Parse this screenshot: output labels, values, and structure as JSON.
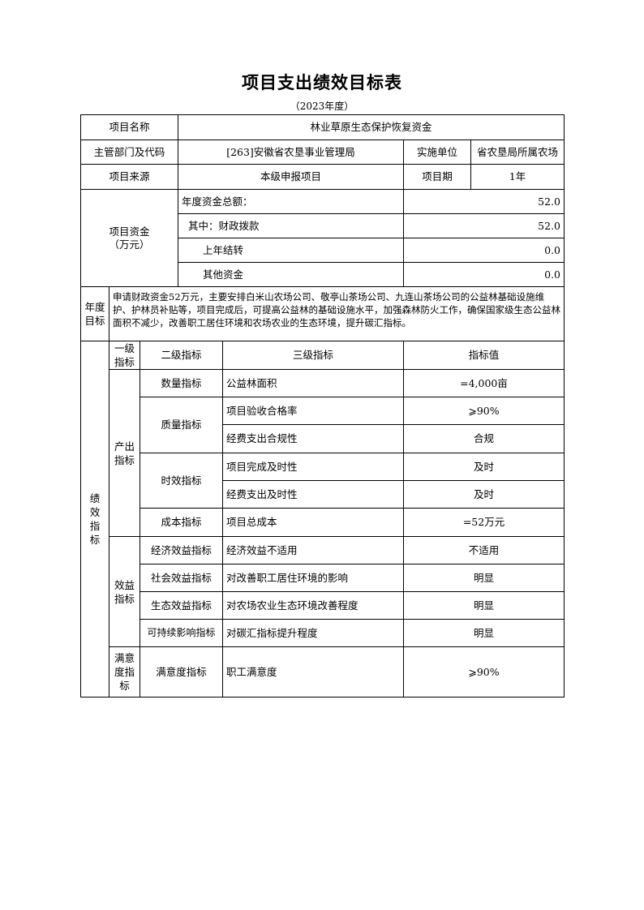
{
  "title": "项目支出绩效目标表",
  "subtitle": "（2023年度）",
  "info": {
    "name_label": "项目名称",
    "name": "林业草原生态保护恢复资金",
    "dept_label": "主管部门及代码",
    "dept": "[263]安徽省农垦事业管理局",
    "impl_label": "实施单位",
    "impl": "省农垦局所属农场",
    "source_label": "项目来源",
    "source": "本级申报项目",
    "period_label": "项目期",
    "period": "1年"
  },
  "funds": {
    "label": "项目资金（万元）",
    "label_line1": "项目资金",
    "label_line2": "（万元）",
    "rows": [
      {
        "label": "年度资金总额：",
        "value": "52.0"
      },
      {
        "label": "其中：财政拨款",
        "value": "52.0"
      },
      {
        "label": "上年结转",
        "value": "0.0"
      },
      {
        "label": "其他资金",
        "value": "0.0"
      }
    ]
  },
  "goal": {
    "label": "年度目标",
    "text": "申请财政资金52万元，主要安排白米山农场公司、敬亭山茶场公司、九连山茶场公司的公益林基础设施维护、护林员补贴等，项目完成后，可提高公益林的基础设施水平，加强森林防火工作，确保国家级生态公益林面积不减少，改善职工居住环境和农场农业的生态环境，提升碳汇指标。"
  },
  "indicators": {
    "section_label": "绩效指标",
    "headers": {
      "level1": "一级指标",
      "level2": "二级指标",
      "level3": "三级指标",
      "value": "指标值"
    },
    "level1": [
      "产出指标",
      "效益指标",
      "满意度指标"
    ],
    "level2": [
      "数量指标",
      "质量指标",
      "时效指标",
      "成本指标",
      "经济效益指标",
      "社会效益指标",
      "生态效益指标",
      "可持续影响指标",
      "满意度指标"
    ],
    "rows": [
      {
        "name": "公益林面积",
        "value": "=4,000亩"
      },
      {
        "name": "项目验收合格率",
        "value": "⩾90%"
      },
      {
        "name": "经费支出合规性",
        "value": "合规"
      },
      {
        "name": "项目完成及时性",
        "value": "及时"
      },
      {
        "name": "经费支出及时性",
        "value": "及时"
      },
      {
        "name": "项目总成本",
        "value": "=52万元"
      },
      {
        "name": "经济效益不适用",
        "value": "不适用"
      },
      {
        "name": "对改善职工居住环境的影响",
        "value": "明显"
      },
      {
        "name": "对农场农业生态环境改善程度",
        "value": "明显"
      },
      {
        "name": "对碳汇指标提升程度",
        "value": "明显"
      },
      {
        "name": "职工满意度",
        "value": "⩾90%"
      }
    ]
  }
}
